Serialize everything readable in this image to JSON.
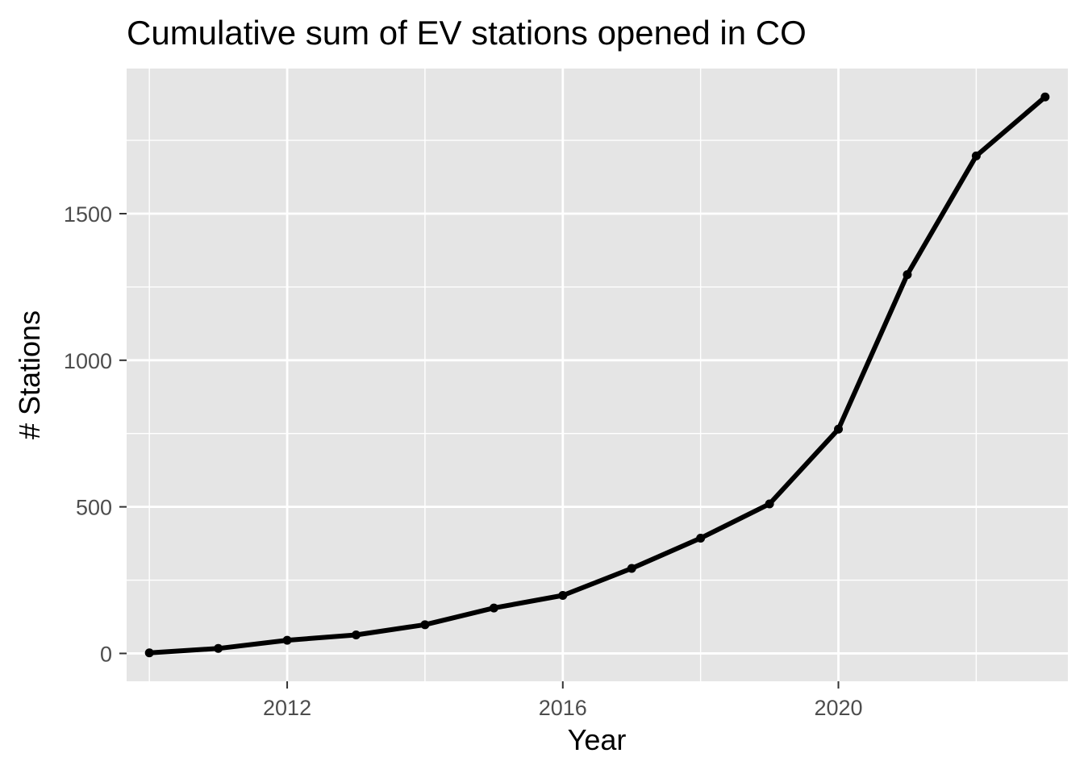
{
  "chart_data": {
    "type": "line",
    "title": "Cumulative sum of EV stations opened in CO",
    "xlabel": "Year",
    "ylabel": "# Stations",
    "x": [
      2010,
      2011,
      2012,
      2013,
      2014,
      2015,
      2016,
      2017,
      2018,
      2019,
      2020,
      2021,
      2022,
      2023
    ],
    "series": [
      {
        "values": [
          2,
          17,
          45,
          63,
          98,
          155,
          198,
          290,
          393,
          510,
          765,
          1292,
          1697,
          1898
        ]
      }
    ],
    "xlim": [
      2009.67,
      2023.33
    ],
    "ylim": [
      -95,
      1995
    ],
    "x_ticks": [
      2012,
      2016,
      2020
    ],
    "x_tick_labels": [
      "2012",
      "2016",
      "2020"
    ],
    "y_ticks": [
      0,
      500,
      1000,
      1500
    ],
    "y_tick_labels": [
      "0",
      "500",
      "1000",
      "1500"
    ],
    "x_minor_ticks": [
      2010,
      2014,
      2018,
      2022
    ],
    "y_minor_ticks": [
      250,
      750,
      1250,
      1750
    ],
    "grid": true,
    "legend": "none",
    "colors": {
      "panel": "#e5e5e5",
      "grid": "#ffffff",
      "line": "#000000",
      "tick_text": "#4d4d4d"
    }
  }
}
